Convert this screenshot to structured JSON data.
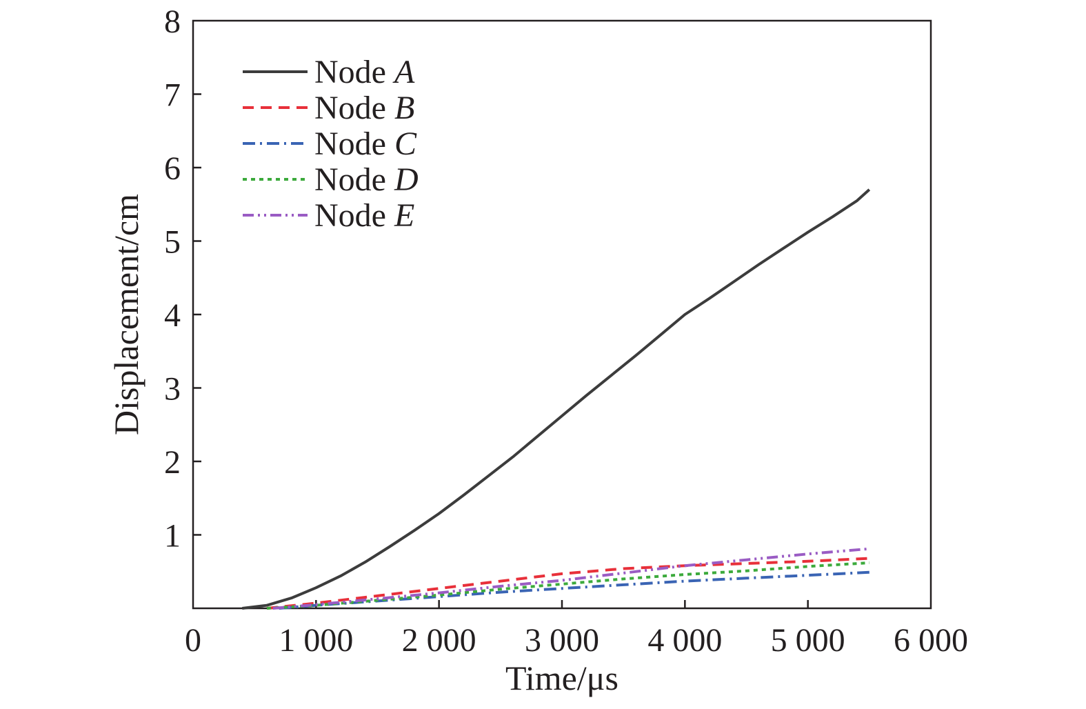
{
  "chart_data": {
    "type": "line",
    "title": "",
    "xlabel": "Time/μs",
    "ylabel": "Displacement/cm",
    "xlim": [
      0,
      6000
    ],
    "ylim": [
      0,
      8
    ],
    "x_ticks": [
      0,
      1000,
      2000,
      3000,
      4000,
      5000,
      6000
    ],
    "x_tick_labels": [
      "0",
      "1 000",
      "2 000",
      "3 000",
      "4 000",
      "5 000",
      "6 000"
    ],
    "y_ticks": [
      1,
      2,
      3,
      4,
      5,
      6,
      7,
      8
    ],
    "y_tick_labels": [
      "1",
      "2",
      "3",
      "4",
      "5",
      "6",
      "7",
      "8"
    ],
    "grid": false,
    "legend_position": "top-left",
    "series": [
      {
        "name": "Node A",
        "name_prefix": "Node ",
        "name_letter": "A",
        "color": "#3c3c3c",
        "line_style": "solid",
        "x": [
          400,
          600,
          800,
          1000,
          1200,
          1400,
          1600,
          1800,
          2000,
          2200,
          2400,
          2600,
          2800,
          3000,
          3200,
          3400,
          3600,
          3800,
          4000,
          4200,
          4400,
          4600,
          4800,
          5000,
          5200,
          5400,
          5500
        ],
        "y": [
          0,
          0.04,
          0.14,
          0.28,
          0.44,
          0.63,
          0.84,
          1.06,
          1.29,
          1.54,
          1.8,
          2.06,
          2.34,
          2.62,
          2.9,
          3.17,
          3.44,
          3.72,
          4.0,
          4.22,
          4.45,
          4.68,
          4.9,
          5.12,
          5.33,
          5.55,
          5.7
        ]
      },
      {
        "name": "Node B",
        "name_prefix": "Node ",
        "name_letter": "B",
        "color": "#e8303a",
        "line_style": "dashed",
        "x": [
          600,
          1000,
          1500,
          2000,
          2500,
          3000,
          3500,
          4000,
          4500,
          5000,
          5500
        ],
        "y": [
          0,
          0.07,
          0.17,
          0.27,
          0.37,
          0.47,
          0.54,
          0.58,
          0.61,
          0.64,
          0.68
        ]
      },
      {
        "name": "Node C",
        "name_prefix": "Node ",
        "name_letter": "C",
        "color": "#3a64b4",
        "line_style": "dash-dot",
        "x": [
          700,
          1000,
          1500,
          2000,
          2500,
          3000,
          3500,
          4000,
          4500,
          5000,
          5500
        ],
        "y": [
          0,
          0.04,
          0.1,
          0.16,
          0.22,
          0.27,
          0.32,
          0.37,
          0.41,
          0.45,
          0.49
        ]
      },
      {
        "name": "Node D",
        "name_prefix": "Node ",
        "name_letter": "D",
        "color": "#3caa3c",
        "line_style": "dotted",
        "x": [
          600,
          1000,
          1500,
          2000,
          2500,
          3000,
          3500,
          4000,
          4500,
          5000,
          5500
        ],
        "y": [
          0,
          0.04,
          0.11,
          0.18,
          0.26,
          0.33,
          0.4,
          0.46,
          0.51,
          0.57,
          0.62
        ]
      },
      {
        "name": "Node E",
        "name_prefix": "Node ",
        "name_letter": "E",
        "color": "#9a5cc4",
        "line_style": "dash-dot-dot",
        "x": [
          650,
          1000,
          1500,
          2000,
          2500,
          3000,
          3500,
          4000,
          4500,
          5000,
          5500
        ],
        "y": [
          0,
          0.05,
          0.13,
          0.21,
          0.3,
          0.38,
          0.48,
          0.58,
          0.66,
          0.74,
          0.81
        ]
      }
    ]
  }
}
